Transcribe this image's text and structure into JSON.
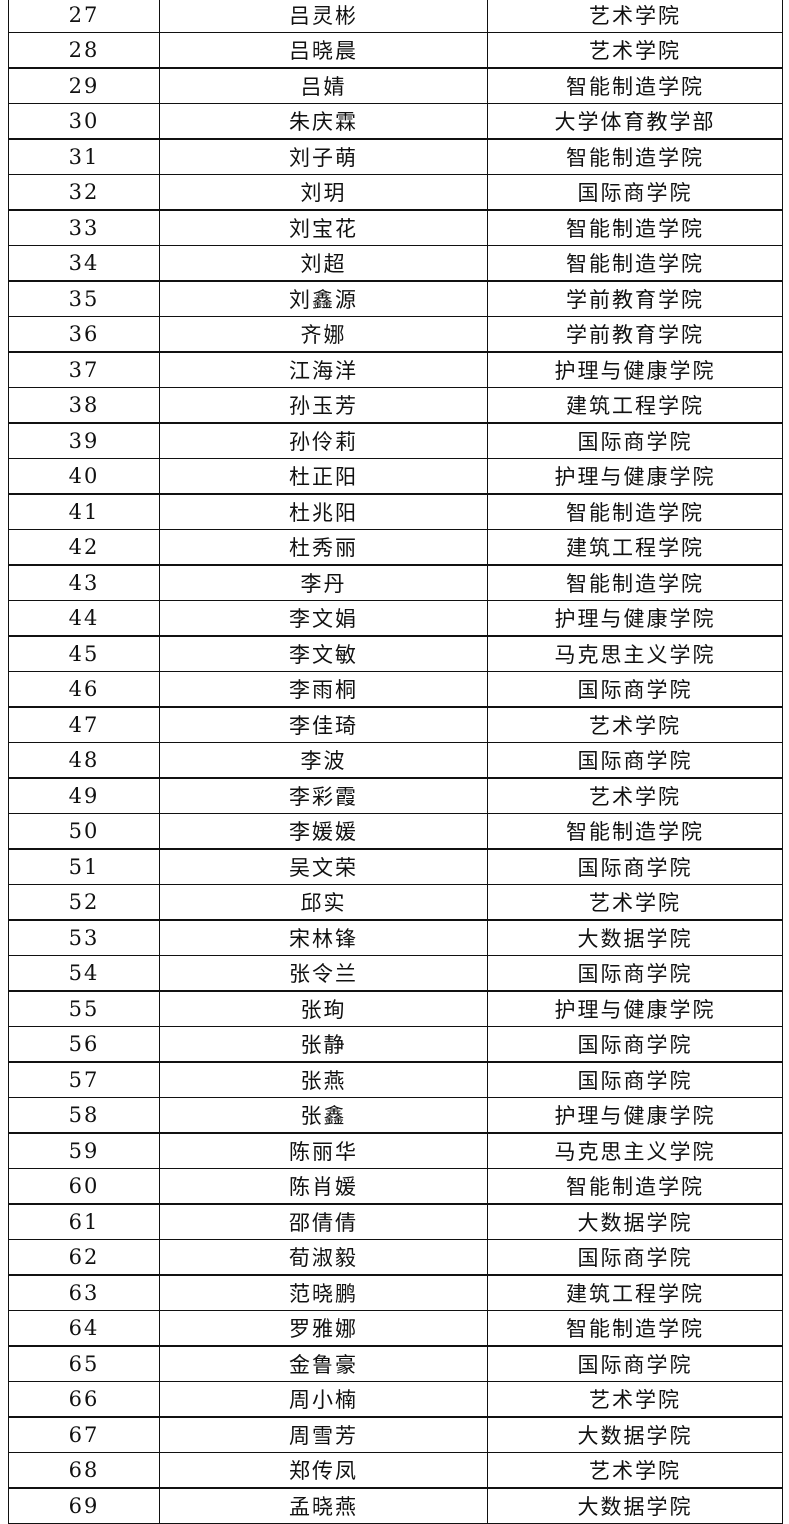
{
  "table": {
    "rows": [
      [
        27,
        "吕灵彬",
        "艺术学院"
      ],
      [
        28,
        "吕晓晨",
        "艺术学院"
      ],
      [
        29,
        "吕婧",
        "智能制造学院"
      ],
      [
        30,
        "朱庆霖",
        "大学体育教学部"
      ],
      [
        31,
        "刘子萌",
        "智能制造学院"
      ],
      [
        32,
        "刘玥",
        "国际商学院"
      ],
      [
        33,
        "刘宝花",
        "智能制造学院"
      ],
      [
        34,
        "刘超",
        "智能制造学院"
      ],
      [
        35,
        "刘鑫源",
        "学前教育学院"
      ],
      [
        36,
        "齐娜",
        "学前教育学院"
      ],
      [
        37,
        "江海洋",
        "护理与健康学院"
      ],
      [
        38,
        "孙玉芳",
        "建筑工程学院"
      ],
      [
        39,
        "孙伶莉",
        "国际商学院"
      ],
      [
        40,
        "杜正阳",
        "护理与健康学院"
      ],
      [
        41,
        "杜兆阳",
        "智能制造学院"
      ],
      [
        42,
        "杜秀丽",
        "建筑工程学院"
      ],
      [
        43,
        "李丹",
        "智能制造学院"
      ],
      [
        44,
        "李文娟",
        "护理与健康学院"
      ],
      [
        45,
        "李文敏",
        "马克思主义学院"
      ],
      [
        46,
        "李雨桐",
        "国际商学院"
      ],
      [
        47,
        "李佳琦",
        "艺术学院"
      ],
      [
        48,
        "李波",
        "国际商学院"
      ],
      [
        49,
        "李彩霞",
        "艺术学院"
      ],
      [
        50,
        "李媛媛",
        "智能制造学院"
      ],
      [
        51,
        "吴文荣",
        "国际商学院"
      ],
      [
        52,
        "邱实",
        "艺术学院"
      ],
      [
        53,
        "宋林锋",
        "大数据学院"
      ],
      [
        54,
        "张令兰",
        "国际商学院"
      ],
      [
        55,
        "张珣",
        "护理与健康学院"
      ],
      [
        56,
        "张静",
        "国际商学院"
      ],
      [
        57,
        "张燕",
        "国际商学院"
      ],
      [
        58,
        "张鑫",
        "护理与健康学院"
      ],
      [
        59,
        "陈丽华",
        "马克思主义学院"
      ],
      [
        60,
        "陈肖媛",
        "智能制造学院"
      ],
      [
        61,
        "邵倩倩",
        "大数据学院"
      ],
      [
        62,
        "荀淑毅",
        "国际商学院"
      ],
      [
        63,
        "范晓鹏",
        "建筑工程学院"
      ],
      [
        64,
        "罗雅娜",
        "智能制造学院"
      ],
      [
        65,
        "金鲁豪",
        "国际商学院"
      ],
      [
        66,
        "周小楠",
        "艺术学院"
      ],
      [
        67,
        "周雪芳",
        "大数据学院"
      ],
      [
        68,
        "郑传凤",
        "艺术学院"
      ],
      [
        69,
        "孟晓燕",
        "大数据学院"
      ]
    ]
  }
}
